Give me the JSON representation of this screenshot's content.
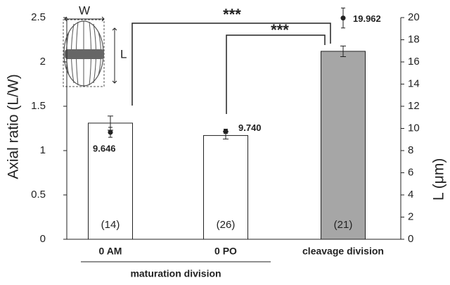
{
  "chart_data": {
    "type": "bar",
    "categories": [
      "0 AM",
      "0 PO",
      "cleavage division"
    ],
    "group_label": "maturation division",
    "y_label": "Axial ratio (L/W)",
    "y2_label": "L (μm)",
    "ylim": [
      0,
      2.5
    ],
    "yticks": [
      0,
      0.5,
      1,
      1.5,
      2,
      2.5
    ],
    "y2lim": [
      0,
      20
    ],
    "y2ticks": [
      0,
      2,
      4,
      6,
      8,
      10,
      12,
      14,
      16,
      18,
      20
    ],
    "series": [
      {
        "type": "bar",
        "values": [
          1.31,
          1.17,
          2.12
        ],
        "errors": [
          0.08,
          0.04,
          0.06
        ],
        "colors": [
          "#ffffff",
          "#ffffff",
          "#a6a6a6"
        ],
        "sample_size_labels": [
          "(14)",
          "(26)",
          "(21)"
        ]
      },
      {
        "type": "scatter",
        "axis": "y2",
        "color": "#222222",
        "values": [
          9.646,
          9.74,
          19.962
        ],
        "value_labels": [
          "9.646",
          "9.740",
          "19.962"
        ],
        "errors": [
          0.45,
          0.2,
          0.9
        ]
      }
    ],
    "significance": [
      "***",
      "***"
    ],
    "inset_labels": {
      "width": "W",
      "length": "L"
    }
  }
}
